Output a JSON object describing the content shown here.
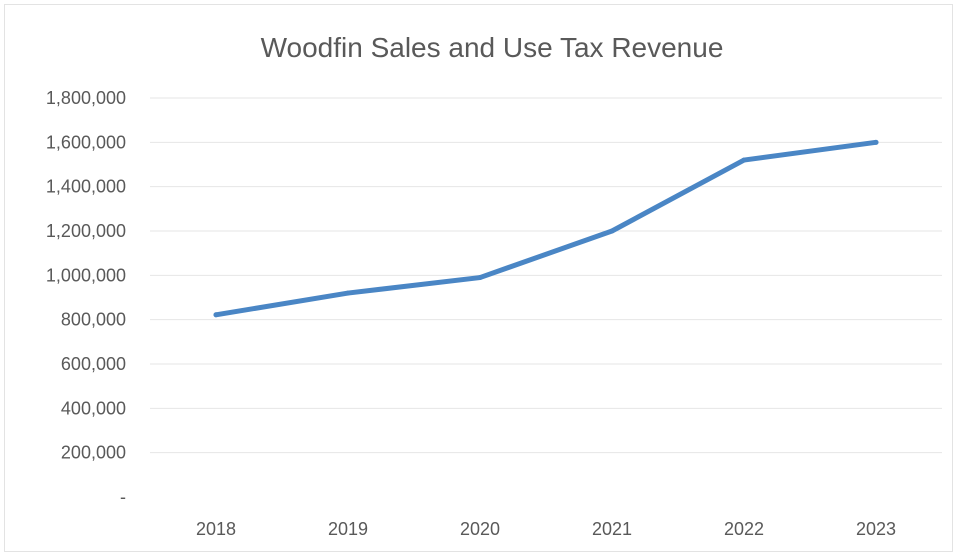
{
  "chart_data": {
    "type": "line",
    "title": "Woodfin Sales and Use Tax Revenue",
    "xlabel": "",
    "ylabel": "",
    "categories": [
      "2018",
      "2019",
      "2020",
      "2021",
      "2022",
      "2023"
    ],
    "series": [
      {
        "values": [
          822000,
          920000,
          990000,
          1200000,
          1520000,
          1600000
        ],
        "color": "#4a86c5"
      }
    ],
    "ylim": [
      0,
      1800000
    ],
    "yticks": [
      0,
      200000,
      400000,
      600000,
      800000,
      1000000,
      1200000,
      1400000,
      1600000,
      1800000
    ],
    "ytick_labels": [
      "-",
      "200,000",
      "400,000",
      "600,000",
      "800,000",
      "1,000,000",
      "1,200,000",
      "1,400,000",
      "1,600,000",
      "1,800,000"
    ],
    "grid": true,
    "legend": "none"
  }
}
